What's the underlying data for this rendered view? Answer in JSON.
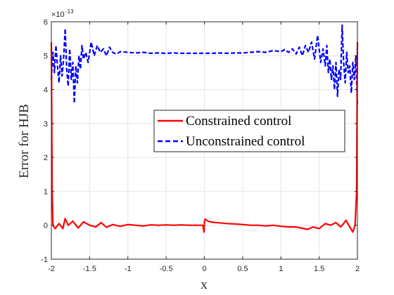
{
  "chart_data": {
    "type": "line",
    "title": "",
    "xlabel": "x",
    "ylabel": "Error for HJB",
    "xlim": [
      -2,
      2
    ],
    "ylim": [
      -1,
      6
    ],
    "y_multiplier_label": "×10",
    "y_multiplier_exp": "-13",
    "xticks": [
      "-2",
      "-1.5",
      "-1",
      "-0.5",
      "0",
      "0.5",
      "1",
      "1.5",
      "2"
    ],
    "xtick_values": [
      -2,
      -1.5,
      -1,
      -0.5,
      0,
      0.5,
      1,
      1.5,
      2
    ],
    "yticks": [
      "-1",
      "0",
      "1",
      "2",
      "3",
      "4",
      "5",
      "6"
    ],
    "ytick_values": [
      -1,
      0,
      1,
      2,
      3,
      4,
      5,
      6
    ],
    "grid": true,
    "legend_position": "center-right",
    "series": [
      {
        "name": "Constrained control",
        "color": "#ff0000",
        "style": "solid",
        "x": [
          -2,
          -1.99,
          -1.98,
          -1.95,
          -1.9,
          -1.85,
          -1.82,
          -1.78,
          -1.72,
          -1.65,
          -1.58,
          -1.5,
          -1.42,
          -1.35,
          -1.28,
          -1.2,
          -1.1,
          -1.0,
          -0.9,
          -0.8,
          -0.7,
          -0.6,
          -0.5,
          -0.4,
          -0.3,
          -0.2,
          -0.1,
          -0.02,
          -0.005,
          0,
          0.01,
          0.05,
          0.1,
          0.2,
          0.3,
          0.4,
          0.5,
          0.6,
          0.7,
          0.8,
          0.9,
          1.0,
          1.1,
          1.2,
          1.3,
          1.35,
          1.42,
          1.5,
          1.58,
          1.65,
          1.72,
          1.78,
          1.82,
          1.85,
          1.9,
          1.94,
          1.97,
          1.99,
          2
        ],
        "y": [
          5.4,
          1.0,
          0.0,
          -0.1,
          0.05,
          -0.1,
          0.2,
          0.0,
          0.12,
          -0.08,
          0.1,
          0.0,
          -0.05,
          0.08,
          -0.06,
          0.02,
          -0.03,
          0.02,
          0.0,
          -0.02,
          0.01,
          0.0,
          0.01,
          0.0,
          0.01,
          0.0,
          0.0,
          0.0,
          -0.2,
          0.1,
          0.18,
          0.12,
          0.09,
          0.07,
          0.05,
          0.04,
          0.02,
          0.0,
          0.0,
          -0.02,
          0.0,
          -0.03,
          -0.05,
          -0.05,
          -0.1,
          -0.12,
          -0.05,
          -0.1,
          0.05,
          0.0,
          0.08,
          -0.05,
          0.05,
          0.15,
          -0.05,
          -0.2,
          0.0,
          1.0,
          5.4
        ]
      },
      {
        "name": "Unconstrained control",
        "color": "#0000ff",
        "style": "dashed",
        "x": [
          -2,
          -1.98,
          -1.96,
          -1.94,
          -1.92,
          -1.9,
          -1.88,
          -1.86,
          -1.84,
          -1.82,
          -1.8,
          -1.78,
          -1.76,
          -1.74,
          -1.72,
          -1.7,
          -1.68,
          -1.66,
          -1.64,
          -1.62,
          -1.6,
          -1.58,
          -1.55,
          -1.52,
          -1.48,
          -1.44,
          -1.4,
          -1.36,
          -1.32,
          -1.28,
          -1.24,
          -1.2,
          -1.15,
          -1.1,
          -1.0,
          -0.9,
          -0.8,
          -0.7,
          -0.6,
          -0.5,
          -0.4,
          -0.3,
          -0.2,
          -0.1,
          0,
          0.1,
          0.2,
          0.3,
          0.4,
          0.5,
          0.6,
          0.7,
          0.8,
          0.9,
          1.0,
          1.05,
          1.1,
          1.15,
          1.2,
          1.24,
          1.28,
          1.32,
          1.36,
          1.4,
          1.44,
          1.48,
          1.52,
          1.55,
          1.58,
          1.6,
          1.62,
          1.64,
          1.66,
          1.68,
          1.7,
          1.72,
          1.74,
          1.76,
          1.78,
          1.8,
          1.82,
          1.84,
          1.86,
          1.88,
          1.9,
          1.92,
          1.94,
          1.96,
          1.98,
          2
        ],
        "y": [
          4.3,
          5.1,
          4.5,
          5.3,
          4.7,
          4.2,
          5.0,
          4.4,
          4.9,
          5.8,
          4.6,
          4.1,
          5.2,
          4.3,
          4.8,
          3.6,
          4.7,
          4.2,
          5.0,
          4.6,
          5.3,
          4.9,
          5.1,
          4.8,
          5.4,
          5.0,
          5.3,
          5.1,
          5.2,
          5.0,
          5.25,
          5.1,
          5.05,
          5.12,
          5.1,
          5.08,
          5.1,
          5.07,
          5.08,
          5.07,
          5.08,
          5.07,
          5.07,
          5.07,
          5.07,
          5.07,
          5.08,
          5.07,
          5.08,
          5.08,
          5.1,
          5.12,
          5.1,
          5.15,
          5.12,
          5.18,
          5.1,
          5.2,
          5.05,
          5.25,
          5.0,
          5.3,
          5.1,
          5.4,
          4.9,
          5.6,
          4.8,
          5.2,
          4.7,
          5.3,
          4.5,
          4.9,
          4.3,
          4.7,
          4.0,
          4.8,
          3.8,
          4.6,
          4.3,
          5.9,
          4.8,
          4.2,
          5.1,
          4.5,
          4.7,
          3.9,
          4.8,
          4.3,
          5.0,
          3.5
        ]
      }
    ]
  }
}
